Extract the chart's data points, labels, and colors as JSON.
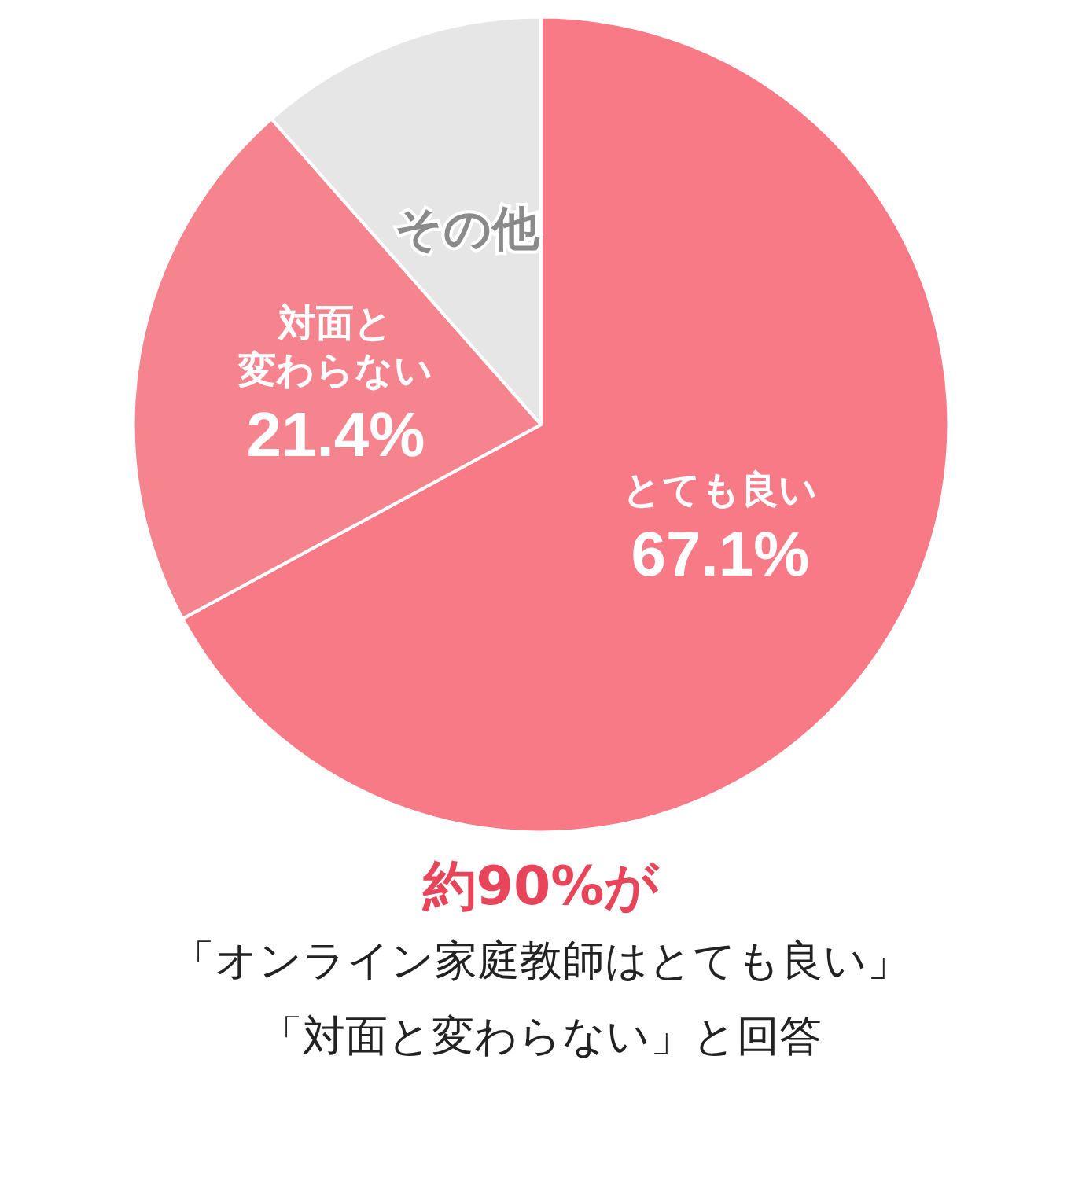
{
  "chart_data": {
    "type": "pie",
    "categories": [
      "とても良い",
      "対面と変わらない",
      "その他"
    ],
    "values": [
      67.1,
      21.4,
      11.5
    ],
    "value_labels": [
      "67.1%",
      "21.4%",
      null
    ],
    "colors": [
      "#f87a87",
      "#f6848f",
      "#e6e6e6"
    ],
    "annotations": [
      "約90%が",
      "「オンライン家庭教師はとても良い」",
      "「対面と変わらない」と回答"
    ]
  }
}
